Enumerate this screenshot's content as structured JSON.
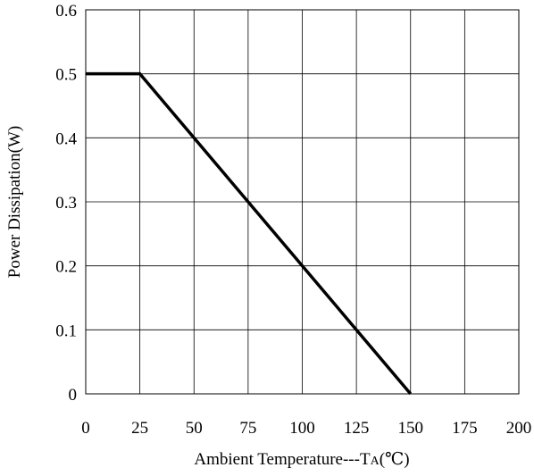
{
  "chart_data": {
    "type": "line",
    "xlabel": "Ambient Temperature---T",
    "xlabel_sub": "A",
    "xlabel_unit": "(℃)",
    "ylabel": "Power Dissipation(W)",
    "xlim": [
      0,
      200
    ],
    "ylim": [
      0,
      0.6
    ],
    "xticks": [
      0,
      25,
      50,
      75,
      100,
      125,
      150,
      175,
      200
    ],
    "yticks": [
      0,
      0.1,
      0.2,
      0.3,
      0.4,
      0.5,
      0.6
    ],
    "xtick_labels": [
      "0",
      "25",
      "50",
      "75",
      "100",
      "125",
      "150",
      "175",
      "200"
    ],
    "ytick_labels": [
      "0",
      "0.1",
      "0.2",
      "0.3",
      "0.4",
      "0.5",
      "0.6"
    ],
    "grid": true,
    "series": [
      {
        "x": [
          0,
          25,
          150
        ],
        "y": [
          0.5,
          0.5,
          0
        ]
      }
    ]
  }
}
